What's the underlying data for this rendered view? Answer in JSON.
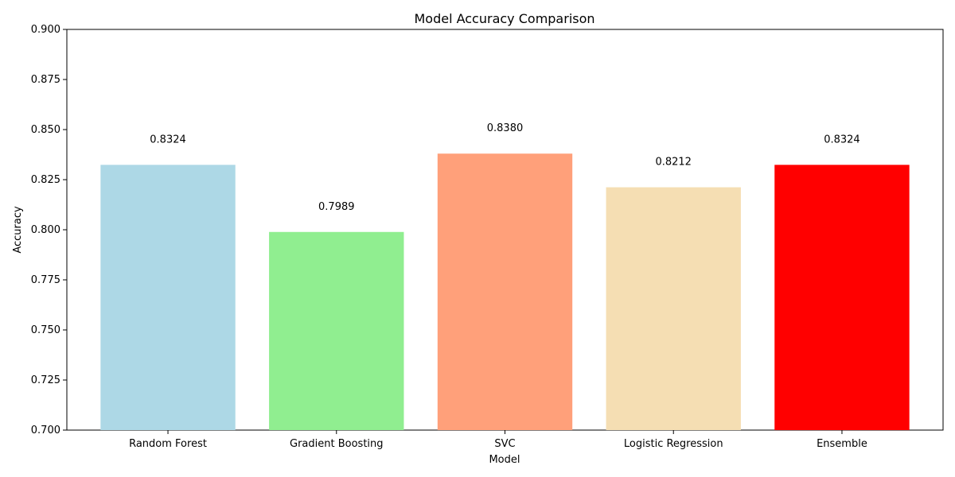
{
  "chart_data": {
    "type": "bar",
    "title": "Model Accuracy Comparison",
    "xlabel": "Model",
    "ylabel": "Accuracy",
    "categories": [
      "Random Forest",
      "Gradient Boosting",
      "SVC",
      "Logistic Regression",
      "Ensemble"
    ],
    "values": [
      0.8324,
      0.7989,
      0.838,
      0.8212,
      0.8324
    ],
    "value_labels": [
      "0.8324",
      "0.7989",
      "0.8380",
      "0.8212",
      "0.8324"
    ],
    "colors": [
      "#add8e6",
      "#90ee90",
      "#ffa07a",
      "#f5deb3",
      "#ff0000"
    ],
    "ylim": [
      0.7,
      0.9
    ],
    "yticks": [
      0.7,
      0.725,
      0.75,
      0.775,
      0.8,
      0.825,
      0.85,
      0.875,
      0.9
    ],
    "ytick_labels": [
      "0.700",
      "0.725",
      "0.750",
      "0.775",
      "0.800",
      "0.825",
      "0.850",
      "0.875",
      "0.900"
    ],
    "grid": false,
    "legend": "none"
  }
}
